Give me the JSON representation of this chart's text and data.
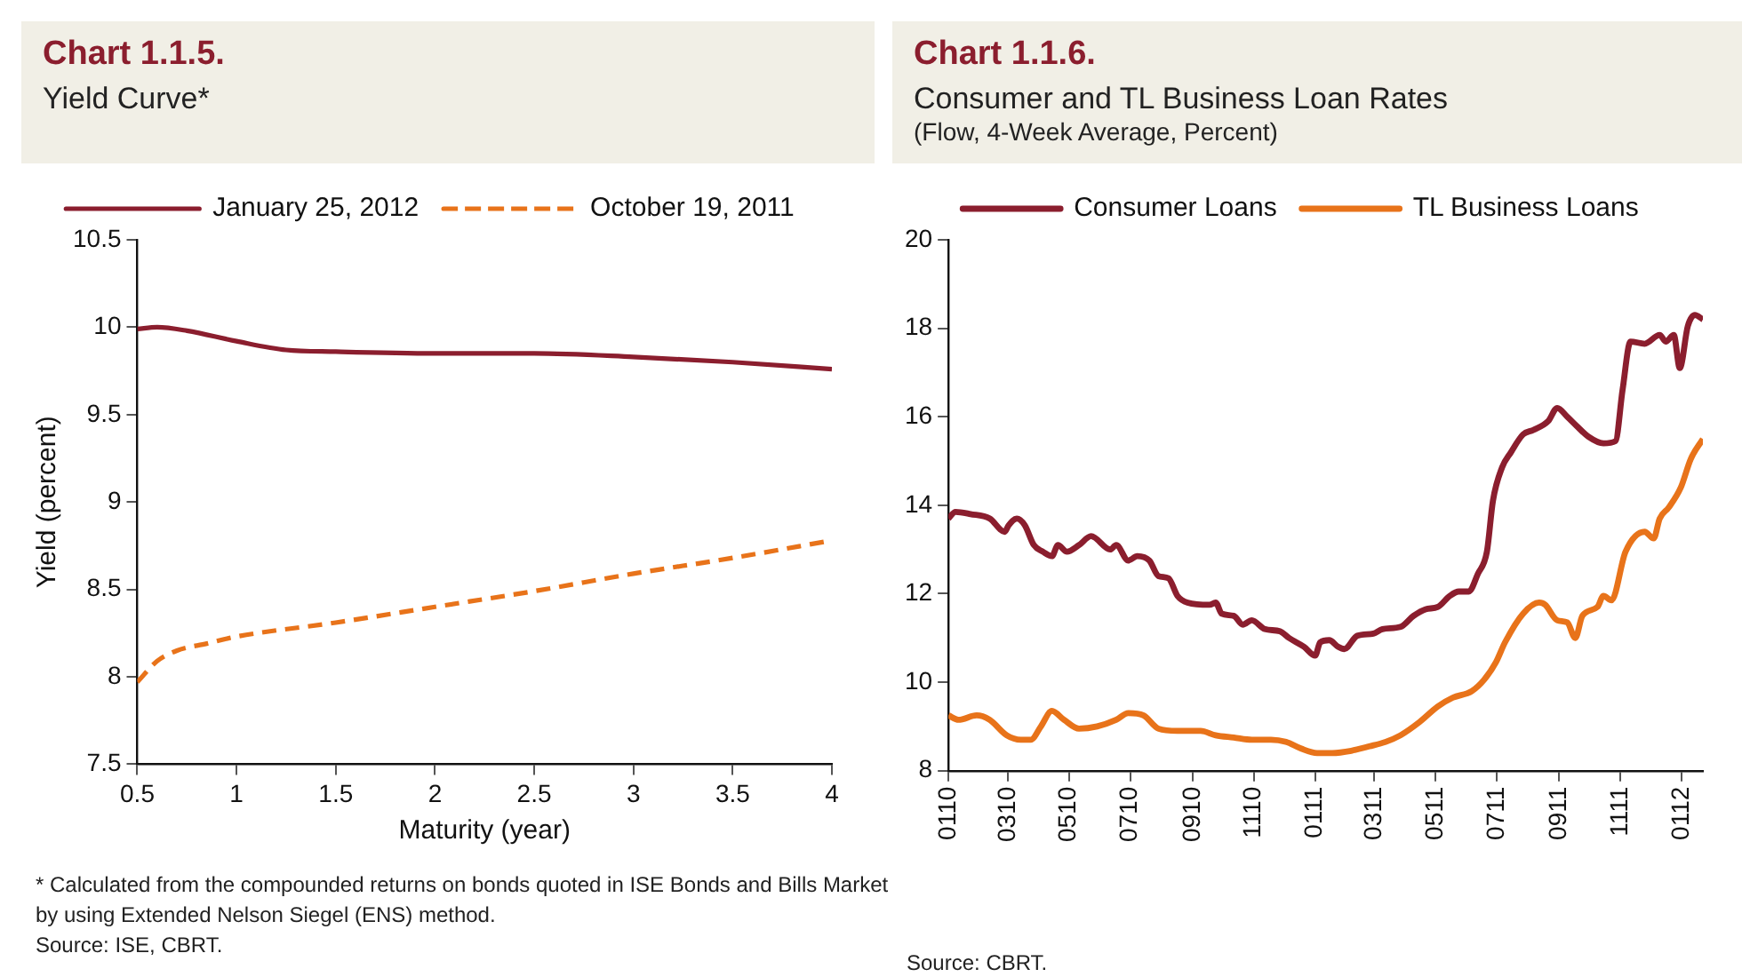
{
  "chart_data": [
    {
      "type": "line",
      "title": "Chart 1.1.5.",
      "subtitle": "Yield Curve*",
      "xlabel": "Maturity (year)",
      "ylabel": "Yield (percent)",
      "x": [
        0.5,
        0.6,
        0.75,
        1,
        1.25,
        1.5,
        2,
        2.5,
        3,
        3.5,
        4
      ],
      "series": [
        {
          "name": "January 25, 2012",
          "color": "#8b1e2e",
          "line_style": "solid",
          "values": [
            9.99,
            10.0,
            9.98,
            9.92,
            9.87,
            9.86,
            9.85,
            9.85,
            9.83,
            9.8,
            9.76
          ]
        },
        {
          "name": "October 19, 2011",
          "color": "#e8731a",
          "line_style": "dashed",
          "x": [
            0.5,
            0.6,
            0.7,
            0.85,
            1,
            1.5,
            2,
            2.5,
            3,
            3.5,
            4
          ],
          "values": [
            7.97,
            8.09,
            8.15,
            8.19,
            8.23,
            8.31,
            8.4,
            8.49,
            8.59,
            8.68,
            8.78
          ]
        }
      ],
      "xlim": [
        0.5,
        4
      ],
      "xticks": [
        0.5,
        1,
        1.5,
        2,
        2.5,
        3,
        3.5,
        4
      ],
      "ylim": [
        7.5,
        10.5
      ],
      "yticks": [
        7.5,
        8,
        8.5,
        9,
        9.5,
        10,
        10.5
      ],
      "grid": false,
      "legend": "top",
      "marker": "none",
      "annotations": [
        "* Calculated from the compounded returns on bonds quoted in ISE Bonds and Bills Market by using Extended Nelson Siegel (ENS) method.",
        "Source: ISE, CBRT."
      ]
    },
    {
      "type": "line",
      "title": "Chart 1.1.6.",
      "subtitle": "Consumer and TL Business Loan Rates\n(Flow, 4-Week Average, Percent)",
      "series": [
        {
          "name": "Consumer Loans",
          "color": "#8b1e2e",
          "x": [
            "2010-01-01",
            "2010-01-08",
            "2010-01-23",
            "2010-02-11",
            "2010-02-26",
            "2010-03-02",
            "2010-03-10",
            "2010-03-18",
            "2010-03-27",
            "2010-04-05",
            "2010-04-14",
            "2010-04-20",
            "2010-04-29",
            "2010-05-11",
            "2010-05-23",
            "2010-06-11",
            "2010-06-17",
            "2010-06-29",
            "2010-07-08",
            "2010-07-20",
            "2010-07-29",
            "2010-08-08",
            "2010-08-17",
            "2010-08-27",
            "2010-09-18",
            "2010-09-24",
            "2010-09-30",
            "2010-10-12",
            "2010-10-21",
            "2010-10-30",
            "2010-11-12",
            "2010-11-27",
            "2010-12-06",
            "2010-12-21",
            "2011-01-01",
            "2011-01-06",
            "2011-01-15",
            "2011-01-24",
            "2011-01-30",
            "2011-02-12",
            "2011-02-28",
            "2011-03-09",
            "2011-03-27",
            "2011-04-09",
            "2011-04-21",
            "2011-05-03",
            "2011-05-15",
            "2011-05-24",
            "2011-06-03",
            "2011-06-12",
            "2011-06-21",
            "2011-06-27",
            "2011-07-06",
            "2011-07-15",
            "2011-07-27",
            "2011-08-06",
            "2011-08-21",
            "2011-08-30",
            "2011-09-09",
            "2011-09-18",
            "2011-09-30",
            "2011-10-15",
            "2011-10-27",
            "2011-11-03",
            "2011-11-11",
            "2011-11-25",
            "2011-12-10",
            "2011-12-16",
            "2011-12-24",
            "2011-12-30",
            "2012-01-07",
            "2012-01-14",
            "2012-01-22"
          ],
          "values": [
            13.7,
            13.85,
            13.8,
            13.7,
            13.4,
            13.55,
            13.7,
            13.55,
            13.1,
            12.95,
            12.85,
            13.1,
            12.95,
            13.1,
            13.3,
            13.0,
            13.1,
            12.75,
            12.85,
            12.75,
            12.4,
            12.35,
            11.95,
            11.8,
            11.75,
            11.8,
            11.55,
            11.5,
            11.3,
            11.4,
            11.2,
            11.15,
            11.0,
            10.8,
            10.6,
            10.9,
            10.95,
            10.8,
            10.75,
            11.05,
            11.1,
            11.2,
            11.25,
            11.5,
            11.65,
            11.7,
            11.95,
            12.05,
            12.05,
            12.45,
            12.95,
            14.1,
            14.85,
            15.2,
            15.6,
            15.7,
            15.9,
            16.2,
            16.0,
            15.8,
            15.55,
            15.4,
            15.45,
            16.6,
            17.7,
            17.65,
            17.85,
            17.7,
            17.85,
            17.1,
            18.05,
            18.3,
            18.2
          ]
        },
        {
          "name": "TL Business Loans",
          "color": "#e8731a",
          "x": [
            "2010-01-01",
            "2010-01-11",
            "2010-01-29",
            "2010-02-11",
            "2010-02-28",
            "2010-03-14",
            "2010-03-24",
            "2010-04-03",
            "2010-04-14",
            "2010-04-26",
            "2010-05-11",
            "2010-05-29",
            "2010-06-17",
            "2010-06-29",
            "2010-07-14",
            "2010-07-29",
            "2010-08-17",
            "2010-09-09",
            "2010-09-24",
            "2010-10-12",
            "2010-10-30",
            "2010-11-18",
            "2010-12-03",
            "2010-12-18",
            "2011-01-03",
            "2011-01-18",
            "2011-02-06",
            "2011-02-24",
            "2011-03-12",
            "2011-03-27",
            "2011-04-15",
            "2011-05-03",
            "2011-05-18",
            "2011-06-06",
            "2011-06-18",
            "2011-06-30",
            "2011-07-09",
            "2011-07-27",
            "2011-08-12",
            "2011-08-18",
            "2011-08-30",
            "2011-09-09",
            "2011-09-17",
            "2011-09-24",
            "2011-10-09",
            "2011-10-15",
            "2011-10-23",
            "2011-11-06",
            "2011-11-25",
            "2011-12-04",
            "2011-12-10",
            "2011-12-19",
            "2011-12-31",
            "2012-01-10",
            "2012-01-22"
          ],
          "values": [
            9.25,
            9.15,
            9.25,
            9.15,
            8.8,
            8.7,
            8.7,
            9.0,
            9.35,
            9.15,
            8.95,
            9.0,
            9.15,
            9.3,
            9.25,
            8.95,
            8.9,
            8.9,
            8.8,
            8.75,
            8.7,
            8.7,
            8.65,
            8.5,
            8.4,
            8.4,
            8.45,
            8.55,
            8.65,
            8.8,
            9.1,
            9.45,
            9.65,
            9.8,
            10.05,
            10.45,
            10.9,
            11.55,
            11.8,
            11.75,
            11.4,
            11.35,
            11.0,
            11.5,
            11.7,
            11.95,
            11.85,
            12.95,
            13.4,
            13.25,
            13.7,
            13.95,
            14.4,
            15.05,
            15.5
          ]
        }
      ],
      "xlim": [
        "2010-01-01",
        "2012-01-22"
      ],
      "xticks": [
        {
          "value": "2010-01-01",
          "label": "0110"
        },
        {
          "value": "2010-03-01",
          "label": "0310"
        },
        {
          "value": "2010-05-01",
          "label": "0510"
        },
        {
          "value": "2010-07-01",
          "label": "0710"
        },
        {
          "value": "2010-09-01",
          "label": "0910"
        },
        {
          "value": "2010-11-01",
          "label": "1110"
        },
        {
          "value": "2011-01-01",
          "label": "0111"
        },
        {
          "value": "2011-03-01",
          "label": "0311"
        },
        {
          "value": "2011-05-01",
          "label": "0511"
        },
        {
          "value": "2011-07-01",
          "label": "0711"
        },
        {
          "value": "2011-09-01",
          "label": "0911"
        },
        {
          "value": "2011-11-01",
          "label": "1111"
        },
        {
          "value": "2012-01-01",
          "label": "0112"
        }
      ],
      "ylim": [
        8,
        20
      ],
      "yticks": [
        8,
        10,
        12,
        14,
        16,
        18,
        20
      ],
      "grid": false,
      "legend": "top",
      "marker": "none",
      "line_style": "solid",
      "annotations": [
        "Source: CBRT."
      ]
    }
  ]
}
